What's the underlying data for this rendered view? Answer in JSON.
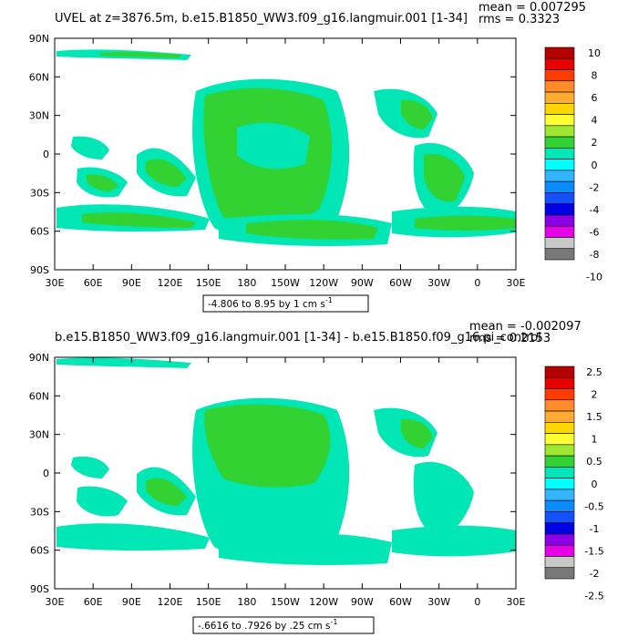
{
  "panels": [
    {
      "title": "UVEL at z=3876.5m, b.e15.B1850_WW3.f09_g16.langmuir.001 [1-34]",
      "mean": "mean = 0.007295",
      "rms": "rms = 0.3323",
      "range_text": "-4.806 to 8.95 by 1 cm s",
      "range_sup": "-1",
      "colorbar_labels": [
        "10",
        "8",
        "6",
        "4",
        "2",
        "0",
        "-2",
        "-4",
        "-6",
        "-8",
        "-10"
      ],
      "colorbar_colors": [
        "#b40000",
        "#e60000",
        "#ff3c00",
        "#ff8c28",
        "#ffaa32",
        "#ffd700",
        "#ffff32",
        "#a0e632",
        "#32d232",
        "#00e6b4",
        "#00ffff",
        "#32b4ff",
        "#0a8cff",
        "#1450ff",
        "#0000e6",
        "#8c00e6",
        "#e600e6",
        "#c8c8c8",
        "#787878"
      ]
    },
    {
      "title": "b.e15.B1850_WW3.f09_g16.langmuir.001 [1-34] - b.e15.B1850.f09_g16.pi_control",
      "mean": "mean = -0.002097",
      "rms": "rms = 0.2153",
      "range_text": "-.6616 to .7926 by .25 cm s",
      "range_sup": "-1",
      "colorbar_labels": [
        "2.5",
        "2",
        "1.5",
        "1",
        "0.5",
        "0",
        "-0.5",
        "-1",
        "-1.5",
        "-2",
        "-2.5"
      ],
      "colorbar_colors": [
        "#b40000",
        "#e60000",
        "#ff3c00",
        "#ff8c28",
        "#ffaa32",
        "#ffd700",
        "#ffff32",
        "#a0e632",
        "#32d232",
        "#00e6b4",
        "#00ffff",
        "#32b4ff",
        "#0a8cff",
        "#1450ff",
        "#0000e6",
        "#8c00e6",
        "#e600e6",
        "#c8c8c8",
        "#787878"
      ]
    }
  ],
  "axes": {
    "lat_labels": [
      "90N",
      "60N",
      "30N",
      "0",
      "30S",
      "60S",
      "90S"
    ],
    "lon_labels": [
      "30E",
      "60E",
      "90E",
      "120E",
      "150E",
      "180",
      "150W",
      "120W",
      "90W",
      "60W",
      "30W",
      "0",
      "30E"
    ]
  },
  "colors": {
    "field_green": "#32d232",
    "field_cyan": "#00e6b4",
    "frame": "#000000"
  }
}
